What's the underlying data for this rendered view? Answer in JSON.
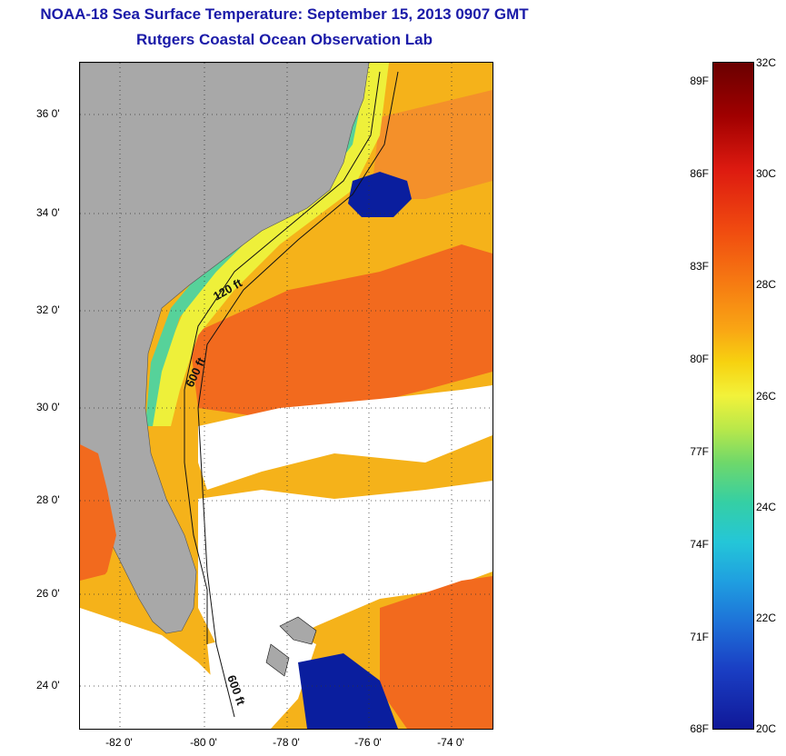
{
  "title_line1": "NOAA-18 Sea Surface Temperature:  September 15, 2013 0907 GMT",
  "title_line2": "Rutgers Coastal Ocean Observation Lab",
  "lat_labels": [
    "36 0'",
    "34 0'",
    "32 0'",
    "30 0'",
    "28 0'",
    "26 0'",
    "24 0'"
  ],
  "lon_labels": [
    "-82 0'",
    "-80 0'",
    "-78 0'",
    "-76 0'",
    "-74 0'"
  ],
  "contour_labels": [
    "120 ft",
    "600 ft",
    "600 ft"
  ],
  "colorbar": {
    "celsius": [
      "32C",
      "30C",
      "28C",
      "26C",
      "24C",
      "22C",
      "20C"
    ],
    "fahrenheit": [
      "89F",
      "86F",
      "83F",
      "80F",
      "77F",
      "74F",
      "71F",
      "68F"
    ]
  },
  "colors": {
    "title": "#1a1aa8",
    "land": "#a8a8a8",
    "cloud": "#ffffff",
    "hot": "#f26a1e",
    "warm": "#f5b21a",
    "mild": "#eef03a",
    "cool": "#56d29a",
    "cold": "#0a1e9e"
  }
}
